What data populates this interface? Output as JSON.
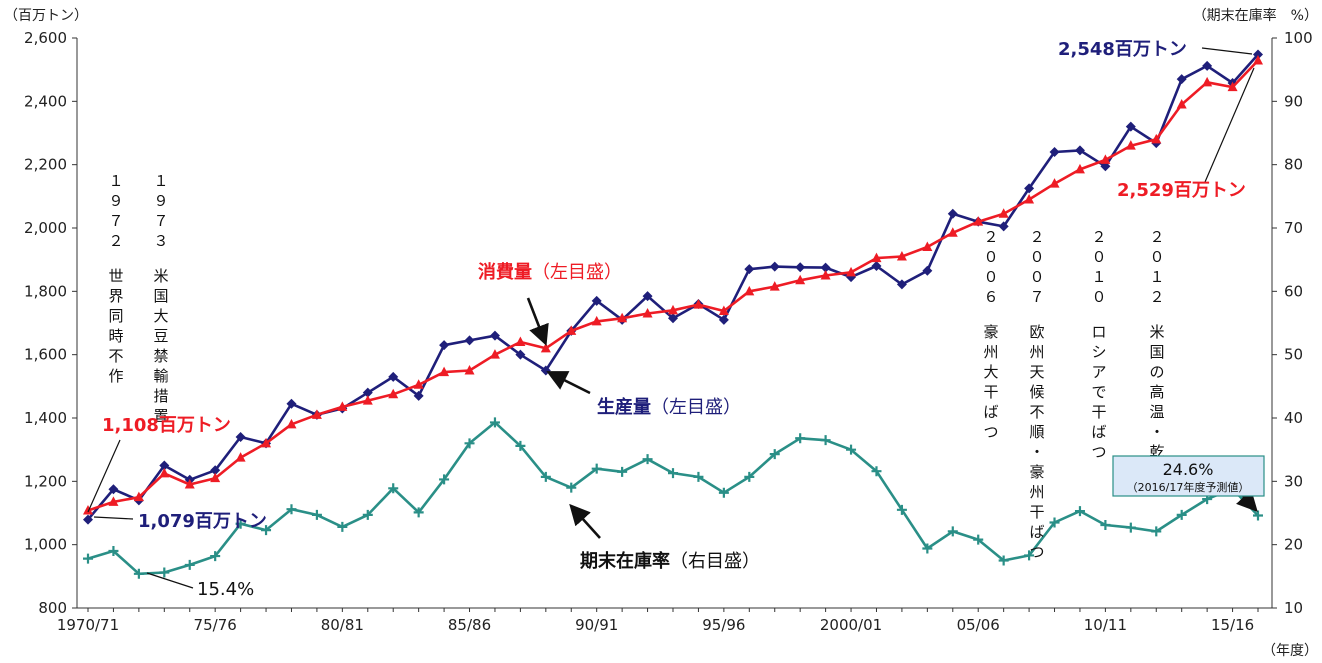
{
  "chart_data": {
    "type": "line",
    "categories": [
      "1970/71",
      "71/72",
      "72/73",
      "73/74",
      "74/75",
      "75/76",
      "76/77",
      "77/78",
      "78/79",
      "79/80",
      "80/81",
      "81/82",
      "82/83",
      "83/84",
      "84/85",
      "85/86",
      "86/87",
      "87/88",
      "88/89",
      "89/90",
      "90/91",
      "91/92",
      "92/93",
      "93/94",
      "94/95",
      "95/96",
      "96/97",
      "97/98",
      "98/99",
      "99/00",
      "2000/01",
      "01/02",
      "02/03",
      "03/04",
      "04/05",
      "05/06",
      "06/07",
      "07/08",
      "08/09",
      "09/10",
      "10/11",
      "11/12",
      "12/13",
      "13/14",
      "14/15",
      "15/16",
      "16/17"
    ],
    "x_tick_labels": [
      "1970/71",
      "75/76",
      "80/81",
      "85/86",
      "90/91",
      "95/96",
      "2000/01",
      "05/06",
      "10/11",
      "15/16"
    ],
    "x_tick_index": [
      0,
      5,
      10,
      15,
      20,
      25,
      30,
      35,
      40,
      45
    ],
    "xlabel": "（年度）",
    "left_axis": {
      "unit": "（百万トン）",
      "ylim": [
        800,
        2600
      ],
      "ticks": [
        "800",
        "1,000",
        "1,200",
        "1,400",
        "1,600",
        "1,800",
        "2,000",
        "2,200",
        "2,400",
        "2,600"
      ]
    },
    "right_axis": {
      "unit": "（期末在庫率　%）",
      "ylim": [
        10,
        100
      ],
      "ticks": [
        "10",
        "20",
        "30",
        "40",
        "50",
        "60",
        "70",
        "80",
        "90",
        "100"
      ]
    },
    "series": [
      {
        "name": "生産量",
        "axis_note": "（左目盛）",
        "color": "#1f1f7a",
        "marker": "diamond",
        "axis": "left",
        "values": [
          1079,
          1175,
          1140,
          1250,
          1205,
          1235,
          1340,
          1320,
          1445,
          1410,
          1430,
          1480,
          1530,
          1470,
          1630,
          1645,
          1660,
          1600,
          1550,
          1675,
          1770,
          1710,
          1785,
          1715,
          1760,
          1710,
          1870,
          1878,
          1876,
          1875,
          1845,
          1880,
          1822,
          1865,
          2045,
          2020,
          2005,
          2125,
          2240,
          2245,
          2195,
          2320,
          2268,
          2470,
          2512,
          2458,
          2548
        ]
      },
      {
        "name": "消費量",
        "axis_note": "（左目盛）",
        "color": "#ee1c25",
        "marker": "triangle",
        "axis": "left",
        "values": [
          1108,
          1135,
          1150,
          1225,
          1190,
          1210,
          1275,
          1320,
          1380,
          1410,
          1435,
          1455,
          1475,
          1505,
          1545,
          1550,
          1600,
          1640,
          1620,
          1675,
          1705,
          1715,
          1730,
          1740,
          1758,
          1738,
          1800,
          1815,
          1835,
          1850,
          1860,
          1905,
          1910,
          1940,
          1985,
          2020,
          2045,
          2090,
          2140,
          2185,
          2215,
          2260,
          2280,
          2390,
          2460,
          2445,
          2529
        ]
      },
      {
        "name": "期末在庫率",
        "axis_note": "（右目盛）",
        "color": "#2a8f87",
        "marker": "cross",
        "axis": "right",
        "values": [
          17.8,
          19.0,
          15.4,
          15.6,
          16.8,
          18.2,
          23.3,
          22.3,
          25.6,
          24.7,
          22.8,
          24.7,
          28.9,
          25.1,
          30.3,
          36.0,
          39.3,
          35.6,
          30.7,
          29.0,
          32.0,
          31.5,
          33.5,
          31.3,
          30.7,
          28.2,
          30.7,
          34.3,
          36.8,
          36.5,
          35.0,
          31.6,
          25.5,
          19.4,
          22.1,
          20.8,
          17.5,
          18.3,
          23.5,
          25.3,
          23.1,
          22.7,
          22.1,
          24.7,
          27.2,
          28.8,
          24.6
        ]
      }
    ],
    "annotations": {
      "prod_start": "1,079百万トン",
      "cons_start": "1,108百万トン",
      "stock_min": "15.4%",
      "prod_end": "2,548百万トン",
      "cons_end": "2,529百万トン",
      "stock_end_value": "24.6%",
      "stock_end_note": "（2016/17年度予測値）"
    },
    "events": [
      {
        "year": "1972",
        "text": "世界同時不作"
      },
      {
        "year": "1973",
        "text": "米国大豆禁輸措置"
      },
      {
        "year": "2006",
        "text": "豪州大干ばつ"
      },
      {
        "year": "2007",
        "text": "欧州天候不順・豪州干ばつ"
      },
      {
        "year": "2010",
        "text": "ロシアで干ばつ"
      },
      {
        "year": "2012",
        "text": "米国の高温・乾燥"
      }
    ]
  }
}
